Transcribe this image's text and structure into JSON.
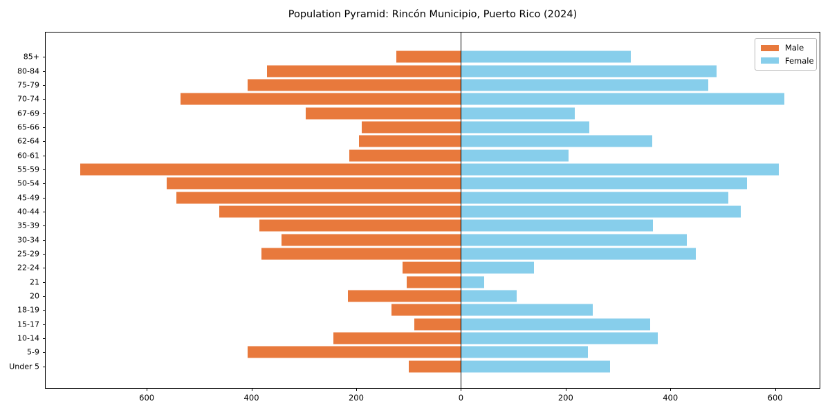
{
  "chart_data": {
    "type": "bar",
    "subtype": "population-pyramid",
    "title": "Population Pyramid: Rincón Municipio, Puerto Rico (2024)",
    "grid": false,
    "background_color": "#ffffff",
    "axis_color": "#000000",
    "categories": [
      "85+",
      "80-84",
      "75-79",
      "70-74",
      "67-69",
      "65-66",
      "62-64",
      "60-61",
      "55-59",
      "50-54",
      "45-49",
      "40-44",
      "35-39",
      "30-34",
      "25-29",
      "22-24",
      "21",
      "20",
      "18-19",
      "15-17",
      "10-14",
      "5-9",
      "Under 5"
    ],
    "series": [
      {
        "name": "Male",
        "side": "left",
        "color": "#e8793c",
        "values": [
          123,
          371,
          407,
          535,
          296,
          190,
          195,
          213,
          727,
          562,
          543,
          462,
          385,
          343,
          381,
          111,
          103,
          216,
          133,
          89,
          244,
          407,
          100
        ]
      },
      {
        "name": "Female",
        "side": "right",
        "color": "#87ceeb",
        "values": [
          324,
          488,
          473,
          617,
          217,
          245,
          365,
          206,
          607,
          546,
          511,
          535,
          367,
          431,
          448,
          140,
          45,
          106,
          252,
          362,
          376,
          243,
          285
        ]
      }
    ],
    "x_axis": {
      "xlim": [
        -793,
        685
      ],
      "tick_values": [
        -600,
        -400,
        -200,
        0,
        200,
        400,
        600
      ],
      "tick_labels": [
        "600",
        "400",
        "200",
        "0",
        "200",
        "400",
        "600"
      ]
    },
    "legend": {
      "position": "upper-right",
      "entries": [
        "Male",
        "Female"
      ]
    }
  }
}
